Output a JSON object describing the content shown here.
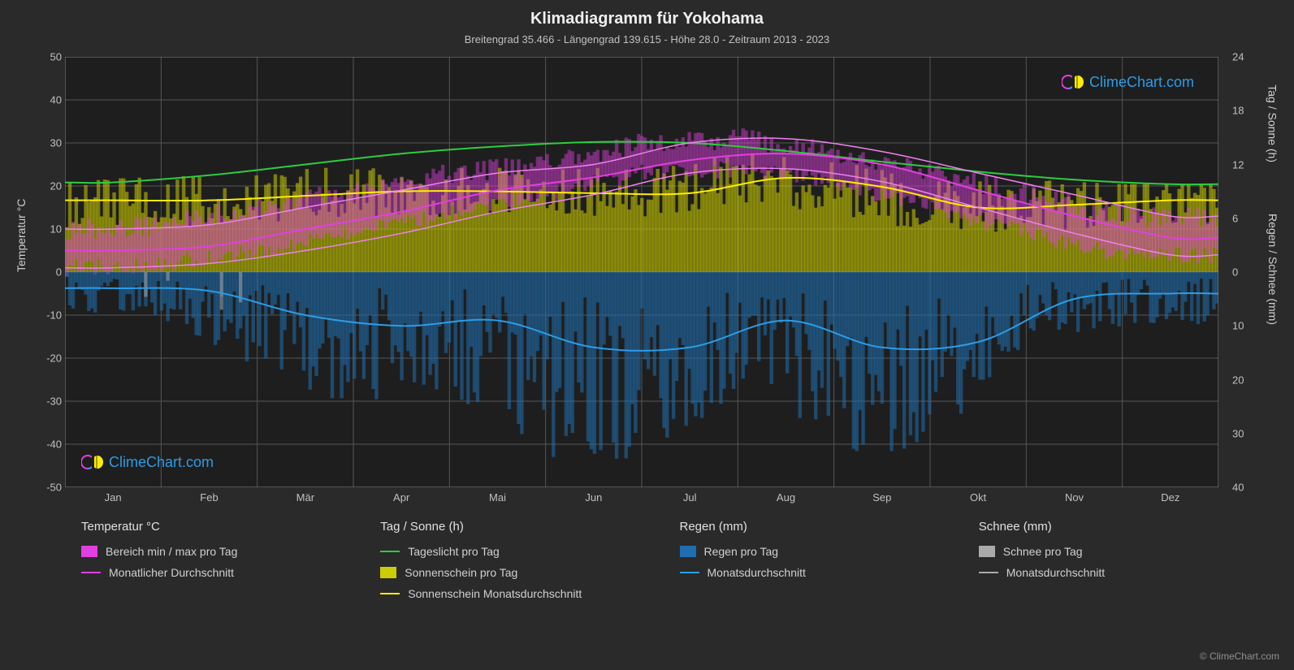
{
  "title": "Klimadiagramm für Yokohama",
  "subtitle": "Breitengrad 35.466 - Längengrad 139.615 - Höhe 28.0 - Zeitraum 2013 - 2023",
  "axis_labels": {
    "left": "Temperatur °C",
    "right_top": "Tag / Sonne (h)",
    "right_bottom": "Regen / Schnee (mm)"
  },
  "watermark": "ClimeChart.com",
  "watermark_color": "#2d9ce6",
  "copyright": "© ClimeChart.com",
  "chart": {
    "background_color": "#1e1e1e",
    "grid_color": "#555555",
    "months": [
      "Jan",
      "Feb",
      "Mär",
      "Apr",
      "Mai",
      "Jun",
      "Jul",
      "Aug",
      "Sep",
      "Okt",
      "Nov",
      "Dez"
    ],
    "yaxis_left": {
      "min": -50,
      "max": 50,
      "step": 10
    },
    "yaxis_right_top": {
      "min": 0,
      "max": 24,
      "step": 6,
      "range_frac": [
        0,
        0.5
      ]
    },
    "yaxis_right_bottom": {
      "min": 0,
      "max": 40,
      "step": 10,
      "range_frac": [
        0.5,
        1
      ],
      "inverted": true
    },
    "series": {
      "daylight": {
        "color": "#2ecc40",
        "width": 2,
        "values_h": [
          10,
          10.8,
          12,
          13.2,
          14,
          14.5,
          14.4,
          13.5,
          12.3,
          11.2,
          10.3,
          9.8
        ]
      },
      "sunshine_avg": {
        "color": "#ffee00",
        "width": 2,
        "values_h": [
          8,
          8,
          8.5,
          9,
          9,
          8.8,
          8.8,
          10.5,
          9.5,
          7.2,
          7.5,
          8
        ]
      },
      "temp_avg": {
        "color": "#e040e0",
        "width": 2,
        "values_c": [
          5,
          6,
          10,
          14,
          19,
          22,
          26,
          27.5,
          25,
          19,
          13,
          8
        ]
      },
      "rain_avg": {
        "color": "#2d9ce6",
        "width": 2,
        "values_mm": [
          3,
          3.5,
          8,
          10,
          9,
          14,
          14,
          9,
          14,
          13,
          5,
          4
        ]
      },
      "temp_range": {
        "color": "#e040e0",
        "opacity": 0.45,
        "min_c": [
          1,
          2,
          5,
          9,
          14,
          18,
          23,
          24,
          21,
          15,
          9,
          4
        ],
        "max_c": [
          10,
          11,
          15,
          19,
          23,
          25,
          30,
          31,
          28,
          23,
          18,
          13
        ]
      },
      "sunshine_daily": {
        "color": "#cccc00",
        "opacity": 0.55
      },
      "rain_daily": {
        "color": "#1f6fb0",
        "opacity": 0.55
      },
      "snow_daily": {
        "color": "#aaaaaa",
        "opacity": 0.55
      }
    }
  },
  "legend": {
    "cols": [
      {
        "header": "Temperatur °C",
        "items": [
          {
            "type": "swatch",
            "color": "#e040e0",
            "label": "Bereich min / max pro Tag"
          },
          {
            "type": "line",
            "color": "#e040e0",
            "label": "Monatlicher Durchschnitt"
          }
        ]
      },
      {
        "header": "Tag / Sonne (h)",
        "items": [
          {
            "type": "line",
            "color": "#2ecc40",
            "label": "Tageslicht pro Tag"
          },
          {
            "type": "swatch",
            "color": "#cccc00",
            "label": "Sonnenschein pro Tag"
          },
          {
            "type": "line",
            "color": "#ffee00",
            "label": "Sonnenschein Monatsdurchschnitt"
          }
        ]
      },
      {
        "header": "Regen (mm)",
        "items": [
          {
            "type": "swatch",
            "color": "#1f6fb0",
            "label": "Regen pro Tag"
          },
          {
            "type": "line",
            "color": "#2d9ce6",
            "label": "Monatsdurchschnitt"
          }
        ]
      },
      {
        "header": "Schnee (mm)",
        "items": [
          {
            "type": "swatch",
            "color": "#aaaaaa",
            "label": "Schnee pro Tag"
          },
          {
            "type": "line",
            "color": "#aaaaaa",
            "label": "Monatsdurchschnitt"
          }
        ]
      }
    ]
  }
}
